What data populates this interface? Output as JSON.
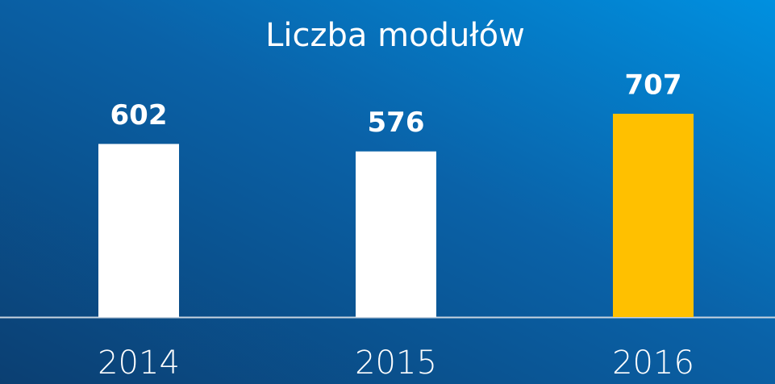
{
  "chart_data": {
    "type": "bar",
    "title": "Liczba modułów",
    "categories": [
      "2014",
      "2015",
      "2016"
    ],
    "values": [
      602,
      576,
      707
    ],
    "colors": [
      "#ffffff",
      "#ffffff",
      "#ffc000"
    ]
  }
}
